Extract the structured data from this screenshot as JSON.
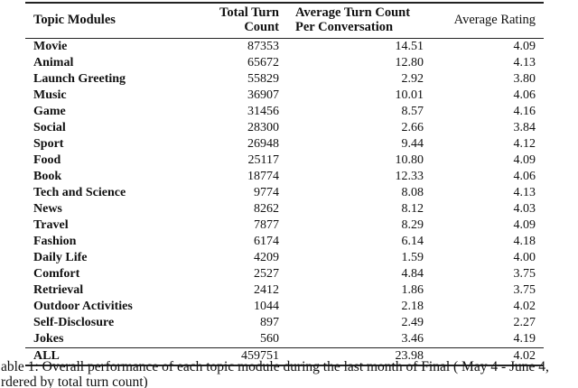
{
  "table": {
    "columns": {
      "topic": "Topic Modules",
      "total": "Total Turn Count",
      "avg_line1": "Average Turn Count",
      "avg_line2": "Per Conversation",
      "rating": "Average Rating"
    },
    "rows": [
      [
        "Movie",
        "87353",
        "14.51",
        "4.09"
      ],
      [
        "Animal",
        "65672",
        "12.80",
        "4.13"
      ],
      [
        "Launch Greeting",
        "55829",
        "2.92",
        "3.80"
      ],
      [
        "Music",
        "36907",
        "10.01",
        "4.06"
      ],
      [
        "Game",
        "31456",
        "8.57",
        "4.16"
      ],
      [
        "Social",
        "28300",
        "2.66",
        "3.84"
      ],
      [
        "Sport",
        "26948",
        "9.44",
        "4.12"
      ],
      [
        "Food",
        "25117",
        "10.80",
        "4.09"
      ],
      [
        "Book",
        "18774",
        "12.33",
        "4.06"
      ],
      [
        "Tech and Science",
        "9774",
        "8.08",
        "4.13"
      ],
      [
        "News",
        "8262",
        "8.12",
        "4.03"
      ],
      [
        "Travel",
        "7877",
        "8.29",
        "4.09"
      ],
      [
        "Fashion",
        "6174",
        "6.14",
        "4.18"
      ],
      [
        "Daily Life",
        "4209",
        "1.59",
        "4.00"
      ],
      [
        "Comfort",
        "2527",
        "4.84",
        "3.75"
      ],
      [
        "Retrieval",
        "2412",
        "1.86",
        "3.75"
      ],
      [
        "Outdoor Activities",
        "1044",
        "2.18",
        "4.02"
      ],
      [
        "Self-Disclosure",
        "897",
        "2.49",
        "2.27"
      ],
      [
        "Jokes",
        "560",
        "3.46",
        "4.19"
      ]
    ],
    "total_row": [
      "ALL",
      "459751",
      "23.98",
      "4.02"
    ],
    "rule_color": "#222222"
  },
  "caption": {
    "line1": "able 1: Overall performance of each topic module during the last month of Final ( May 4 - June 4,",
    "line2": "rdered by total turn count)"
  }
}
